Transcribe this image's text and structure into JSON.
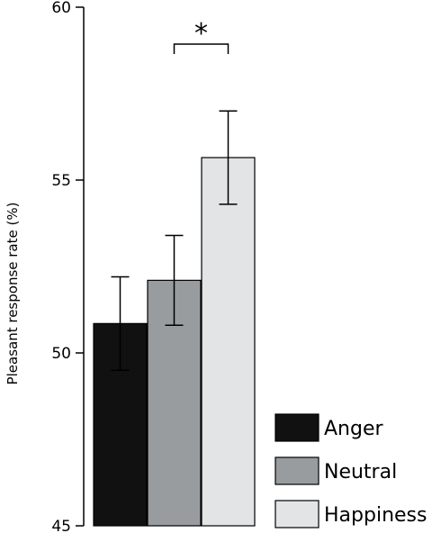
{
  "chart_data": {
    "type": "bar",
    "title": "",
    "xlabel": "",
    "ylabel": "Pleasant response rate (%)",
    "ylim": [
      45,
      60
    ],
    "yticks": [
      45,
      50,
      55,
      60
    ],
    "grid": false,
    "legend_position": "bottom-right",
    "categories": [
      "Anger",
      "Neutral",
      "Happiness"
    ],
    "values": [
      50.85,
      52.1,
      55.65
    ],
    "error": [
      1.35,
      1.3,
      1.35
    ],
    "colors": [
      "#111111",
      "#999c9e",
      "#e3e4e5"
    ],
    "significance": [
      {
        "from": 1,
        "to": 2,
        "label": "*"
      }
    ],
    "legend": [
      {
        "label": "Anger",
        "color": "#111111"
      },
      {
        "label": "Neutral",
        "color": "#999c9e"
      },
      {
        "label": "Happiness",
        "color": "#e3e4e5"
      }
    ]
  }
}
